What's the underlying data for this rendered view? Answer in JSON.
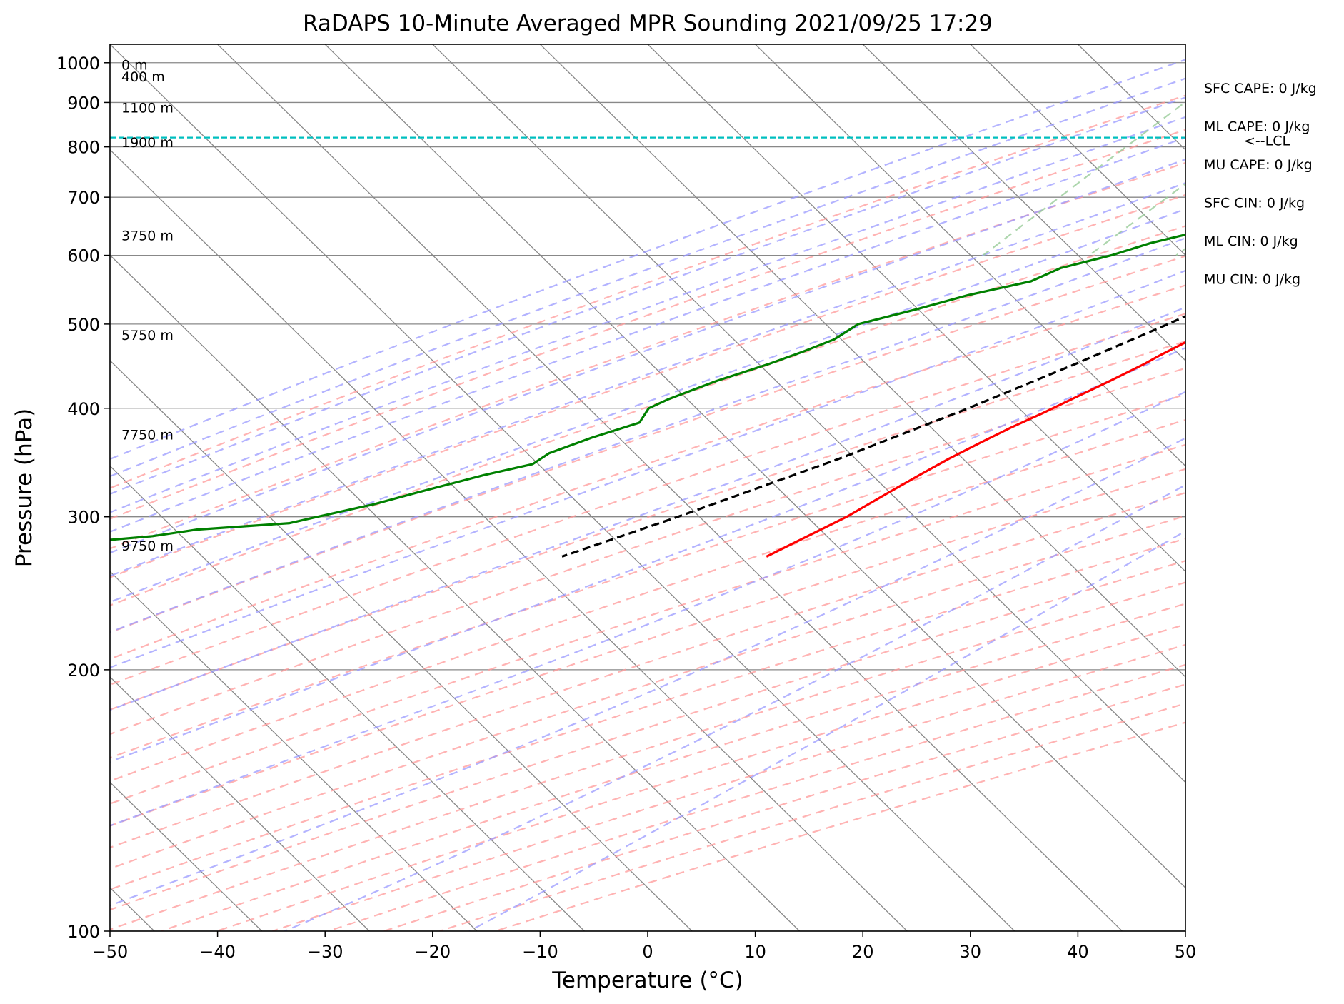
{
  "chart_data": {
    "type": "line",
    "subtype": "skew-t",
    "title": "RaDAPS 10-Minute Averaged MPR Sounding 2021/09/25 17:29",
    "xlabel": "Temperature (°C)",
    "ylabel": "Pressure (hPa)",
    "xlim": [
      -50,
      50
    ],
    "ylim": [
      1050,
      100
    ],
    "y_scale": "log",
    "grid": true,
    "x_ticks": [
      -50,
      -40,
      -30,
      -20,
      -10,
      0,
      10,
      20,
      30,
      40,
      50
    ],
    "y_ticks": [
      100,
      200,
      300,
      400,
      500,
      600,
      700,
      800,
      900,
      1000
    ],
    "x_tick_labels": [
      "−50",
      "−40",
      "−30",
      "−20",
      "−10",
      "0",
      "10",
      "20",
      "30",
      "40",
      "50"
    ],
    "y_tick_labels": [
      "100",
      "200",
      "300",
      "400",
      "500",
      "600",
      "700",
      "800",
      "900",
      "1000"
    ],
    "series": [
      {
        "role": "temperature",
        "color": "#ff0000",
        "p": [
          995,
          985,
          960,
          930,
          900,
          880,
          860,
          840,
          800,
          750,
          700,
          660,
          620,
          590,
          560,
          540,
          520,
          500,
          480,
          460,
          450,
          430,
          410,
          395,
          380,
          365,
          350,
          335,
          320,
          300,
          285,
          270
        ],
        "t": [
          25.5,
          21.5,
          19.5,
          17.5,
          16.0,
          14.5,
          13.8,
          13.2,
          11.5,
          9.8,
          8.5,
          6.0,
          3.8,
          1.8,
          -0.2,
          -1.2,
          -2.6,
          -4.0,
          -5.6,
          -7.0,
          -7.6,
          -9.2,
          -11.0,
          -12.4,
          -14.0,
          -15.4,
          -16.8,
          -18.0,
          -19.2,
          -20.8,
          -22.6,
          -24.5
        ]
      },
      {
        "role": "dewpoint",
        "color": "#008000",
        "p": [
          995,
          990,
          985,
          975,
          960,
          940,
          925,
          915,
          905,
          895,
          885,
          875,
          860,
          840,
          820,
          800,
          780,
          760,
          740,
          720,
          700,
          680,
          660,
          640,
          620,
          600,
          580,
          560,
          540,
          520,
          500,
          480,
          465,
          450,
          430,
          410,
          400,
          385,
          370,
          355,
          345,
          335,
          320,
          310,
          300,
          295,
          290,
          285,
          280
        ],
        "t": [
          12.3,
          7.0,
          3.5,
          1.8,
          0.6,
          0.0,
          0.5,
          0.0,
          0.4,
          0.4,
          0.8,
          1.0,
          1.8,
          4.0,
          6.5,
          7.2,
          7.2,
          7.2,
          6.2,
          0.2,
          -2.6,
          -8.0,
          -11.0,
          -15.0,
          -18.5,
          -21.0,
          -24.5,
          -26.0,
          -30.5,
          -34.0,
          -38.0,
          -38.8,
          -40.5,
          -42.5,
          -45.8,
          -48.5,
          -49.5,
          -49.0,
          -52.0,
          -54.5,
          -55.0,
          -58.5,
          -63.0,
          -66.0,
          -70.0,
          -72.0,
          -80.0,
          -83.5,
          -90.0
        ]
      },
      {
        "role": "parcel",
        "color": "#000000",
        "dashed": true,
        "p": [
          995,
          960,
          920,
          880,
          840,
          820,
          800,
          750,
          700,
          650,
          600,
          550,
          500,
          450,
          400,
          350,
          300,
          270
        ],
        "t": [
          25.5,
          22.0,
          18.2,
          14.3,
          10.3,
          8.4,
          7.7,
          5.8,
          3.6,
          1.1,
          -1.8,
          -5.2,
          -9.2,
          -14.0,
          -19.8,
          -27.0,
          -36.5,
          -43.5
        ]
      }
    ],
    "lcl": {
      "p": 820,
      "label": "<--LCL",
      "color": "#00bfbf"
    },
    "height_labels": [
      {
        "p": 995,
        "text": "0 m"
      },
      {
        "p": 964,
        "text": "400 m"
      },
      {
        "p": 888,
        "text": "1100 m"
      },
      {
        "p": 810,
        "text": "1900 m"
      },
      {
        "p": 633,
        "text": "3750 m"
      },
      {
        "p": 486,
        "text": "5750 m"
      },
      {
        "p": 373,
        "text": "7750 m"
      },
      {
        "p": 278,
        "text": "9750 m"
      }
    ],
    "indices": [
      "SFC CAPE: 0 J/kg",
      "ML CAPE: 0 J/kg",
      "MU CAPE: 0 J/kg",
      "SFC CIN: 0 J/kg",
      "ML CIN: 0 J/kg",
      "MU CIN: 0 J/kg"
    ],
    "colors": {
      "dry_adiabats": "#ff9999",
      "moist_adiabats": "#9999ff",
      "mixing_ratio": "#99cc99",
      "isotherms": "#888888",
      "isobars": "#888888"
    }
  }
}
